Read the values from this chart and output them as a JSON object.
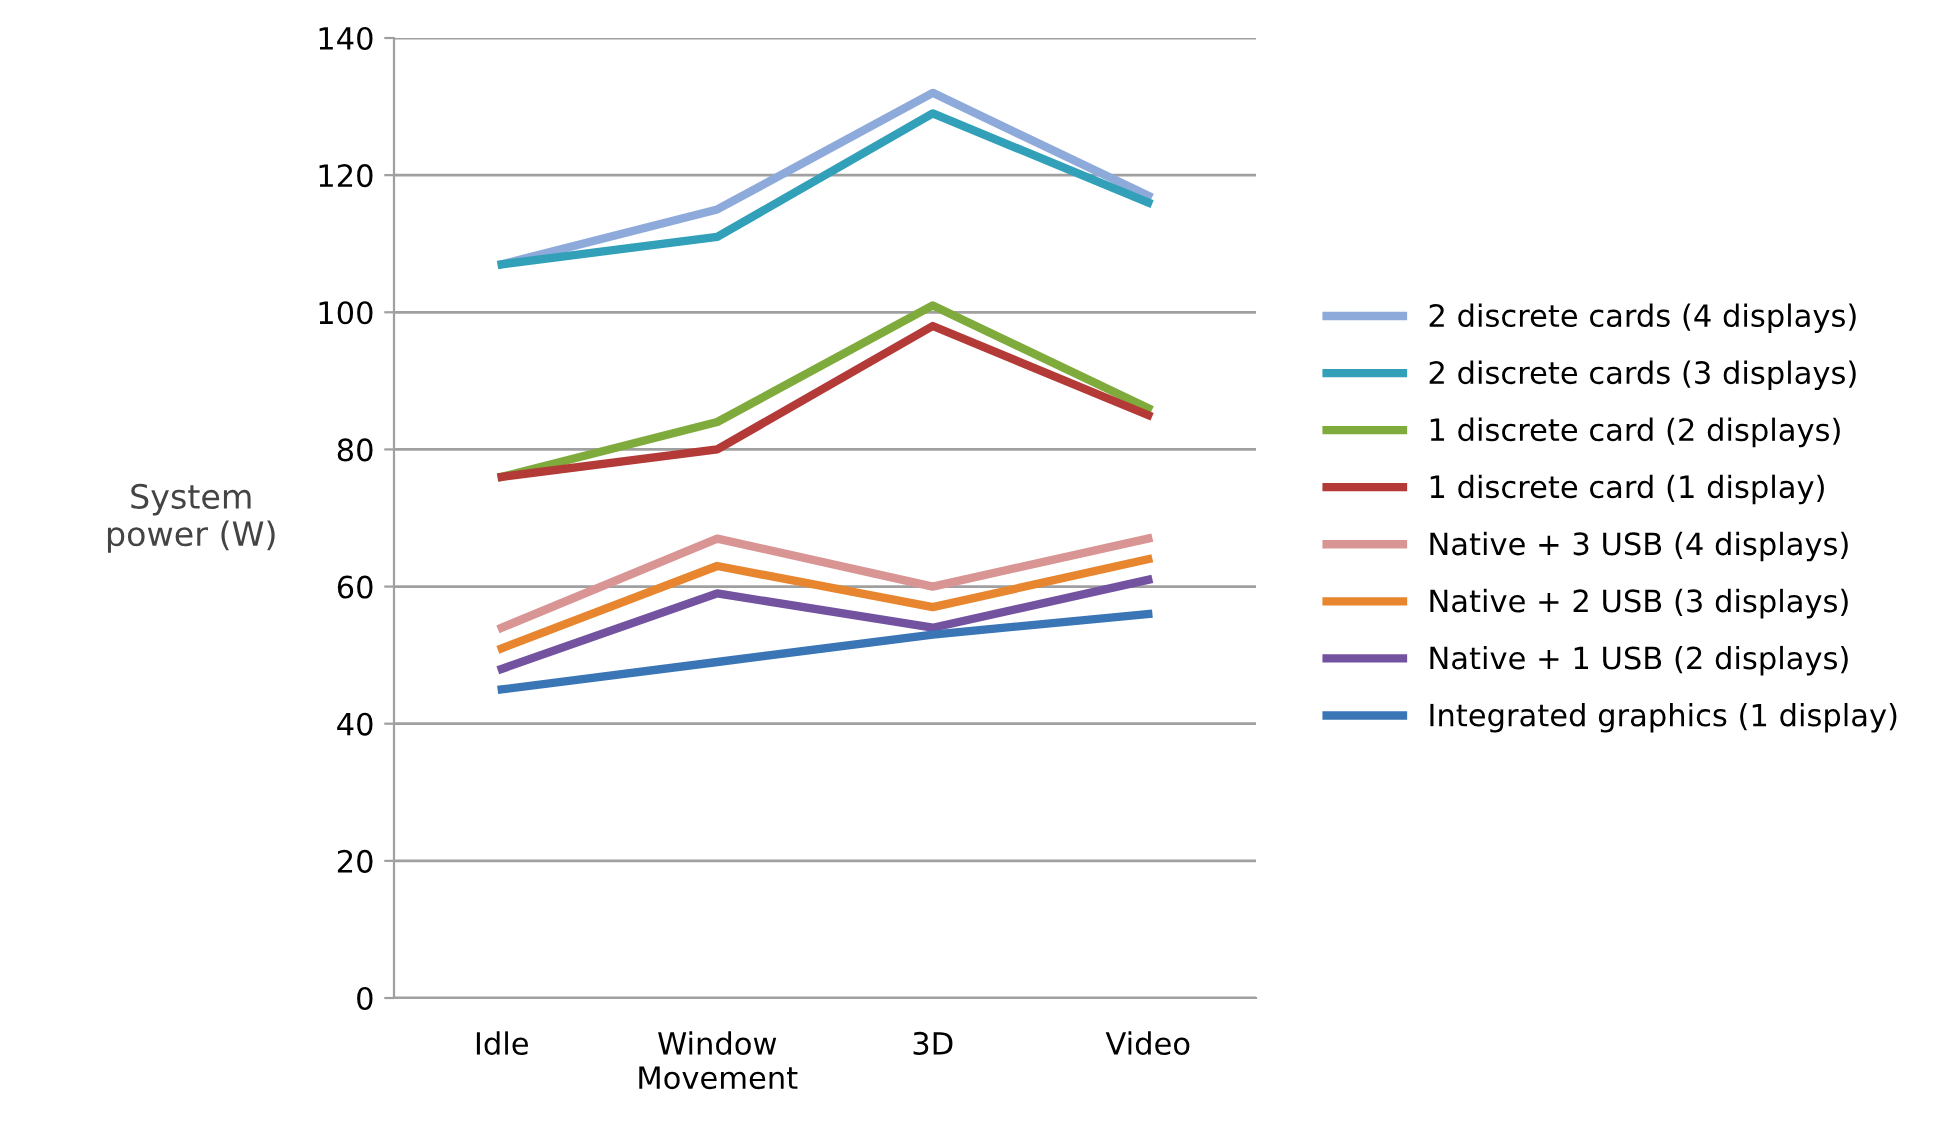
{
  "chart_data": {
    "type": "line",
    "ylabel": "System\npower (W)",
    "categories": [
      "Idle",
      "Window\nMovement",
      "3D",
      "Video"
    ],
    "ylim": [
      0,
      140
    ],
    "yticks": [
      0,
      20,
      40,
      60,
      80,
      100,
      120,
      140
    ],
    "grid": "y",
    "legend": "right",
    "marker": "none",
    "series": [
      {
        "name": "2 discrete cards (4 displays)",
        "color": "#8eaadb",
        "values": [
          107,
          115,
          132,
          117
        ]
      },
      {
        "name": "2 discrete cards (3 displays)",
        "color": "#31a0b8",
        "values": [
          107,
          111,
          129,
          116
        ]
      },
      {
        "name": "1 discrete card (2 displays)",
        "color": "#7fab3c",
        "values": [
          76,
          84,
          101,
          86
        ]
      },
      {
        "name": "1 discrete card (1 display)",
        "color": "#b33a36",
        "values": [
          76,
          80,
          98,
          85
        ]
      },
      {
        "name": "Native + 3 USB (4 displays)",
        "color": "#d99594",
        "values": [
          54,
          67,
          60,
          67
        ]
      },
      {
        "name": "Native + 2 USB (3 displays)",
        "color": "#e8862f",
        "values": [
          51,
          63,
          57,
          64
        ]
      },
      {
        "name": "Native + 1 USB (2 displays)",
        "color": "#7352a0",
        "values": [
          48,
          59,
          54,
          61
        ]
      },
      {
        "name": "Integrated graphics (1 display)",
        "color": "#3a75b6",
        "values": [
          45,
          49,
          53,
          56
        ]
      }
    ]
  }
}
